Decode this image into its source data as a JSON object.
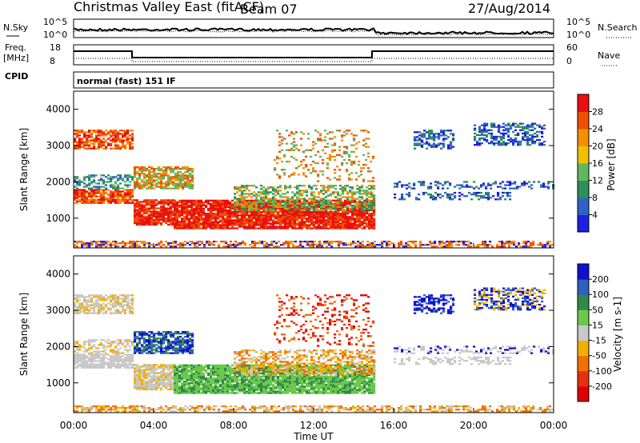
{
  "header": {
    "station": "Christmas Valley East (fitACF)",
    "beam": "Beam 07",
    "date": "27/Aug/2014"
  },
  "top_panels": {
    "nsky_label": "N.Sky",
    "nsky_ticks": [
      "10^5",
      "10^0"
    ],
    "nsearch_label": "N.Search",
    "nsearch_ticks": [
      "10^5",
      "10^0"
    ],
    "freq_label": [
      "Freq.",
      "[MHz]"
    ],
    "freq_ticks": [
      "18",
      "8"
    ],
    "nave_label": "Nave",
    "nave_ticks": [
      "60",
      "0"
    ],
    "cpid_label": "CPID",
    "cpid_value": "normal (fast) 151 IF"
  },
  "colors": {
    "power": [
      "#1f1fe0",
      "#2f62c8",
      "#2f8f5a",
      "#5fb85f",
      "#f0c000",
      "#f49000",
      "#f05000",
      "#e81010"
    ],
    "velocity": [
      "#1010d0",
      "#2f5fc0",
      "#2f8a4a",
      "#6cc84a",
      "#c8c8c8",
      "#f0b000",
      "#f07000",
      "#e83010",
      "#e00000"
    ]
  },
  "chart_data": [
    {
      "type": "heatmap",
      "name": "power-panel",
      "ylabel": "Slant Range [km]",
      "xlabel": "Time UT",
      "yticks": [
        "4000",
        "3000",
        "2000",
        "1000"
      ],
      "yticks_values": [
        4000,
        3000,
        2000,
        1000
      ],
      "ylim": [
        180,
        4500
      ],
      "xlim_hours": [
        0,
        24
      ],
      "colorbar_title": "Power [dB]",
      "colorbar_ticks": [
        "28",
        "24",
        "20",
        "16",
        "12",
        "8",
        "4"
      ]
    },
    {
      "type": "heatmap",
      "name": "velocity-panel",
      "ylabel": "Slant Range [km]",
      "xlabel": "Time UT",
      "yticks": [
        "4000",
        "3000",
        "2000",
        "1000"
      ],
      "yticks_values": [
        4000,
        3000,
        2000,
        1000
      ],
      "ylim": [
        180,
        4500
      ],
      "xlim_hours": [
        0,
        24
      ],
      "colorbar_title": "Velocity [m s-1]",
      "colorbar_ticks": [
        "200",
        "100",
        "50",
        "15",
        "-15",
        "-50",
        "-100",
        "-200"
      ]
    }
  ],
  "xaxis": {
    "ticks": [
      "00:00",
      "04:00",
      "08:00",
      "12:00",
      "16:00",
      "20:00",
      "00:00"
    ],
    "tick_hours": [
      0,
      4,
      8,
      12,
      16,
      20,
      24
    ],
    "label": "Time UT"
  }
}
